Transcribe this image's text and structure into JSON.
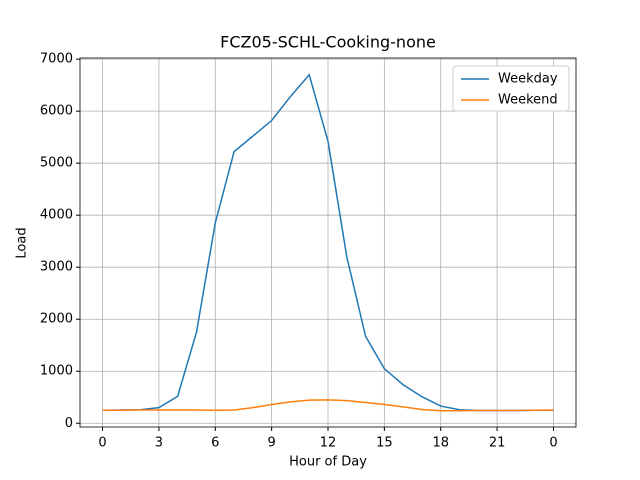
{
  "chart_data": {
    "type": "line",
    "title": "FCZ05-SCHL-Cooking-none",
    "x_label": "Hour of Day",
    "y_label": "Load",
    "x": [
      0,
      1,
      2,
      3,
      4,
      5,
      6,
      7,
      8,
      9,
      10,
      11,
      12,
      13,
      14,
      15,
      16,
      17,
      18,
      19,
      20,
      21,
      22,
      23,
      24
    ],
    "series": [
      {
        "name": "Weekday",
        "color": "#1f77b4",
        "values": [
          250,
          255,
          260,
          300,
          520,
          1750,
          3850,
          5220,
          5520,
          5820,
          6280,
          6700,
          5420,
          3200,
          1670,
          1050,
          740,
          510,
          330,
          260,
          245,
          245,
          245,
          250,
          250
        ]
      },
      {
        "name": "Weekend",
        "color": "#ff7f0e",
        "values": [
          250,
          250,
          255,
          255,
          255,
          255,
          250,
          255,
          300,
          360,
          410,
          445,
          450,
          435,
          400,
          360,
          315,
          265,
          240,
          240,
          245,
          245,
          245,
          250,
          255
        ]
      }
    ],
    "xlim": [
      -1.2,
      25.2
    ],
    "ylim": [
      -72,
      7022
    ],
    "xticks": [
      0,
      3,
      6,
      9,
      12,
      15,
      18,
      21,
      {
        "value": 24,
        "label": "0"
      }
    ],
    "yticks": [
      0,
      1000,
      2000,
      3000,
      4000,
      5000,
      6000,
      7000
    ],
    "grid": true,
    "legend": "upper right"
  }
}
